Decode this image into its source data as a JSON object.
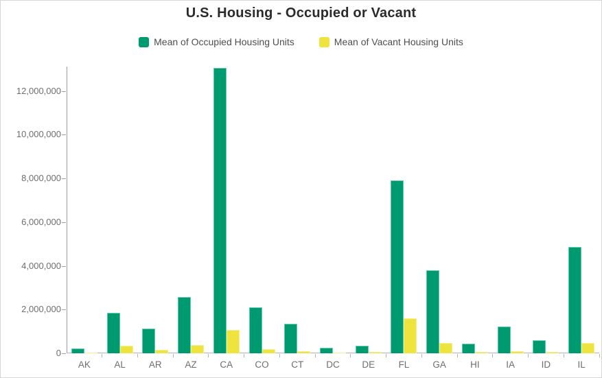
{
  "header": {
    "title": "U.S. Housing - Occupied or Vacant"
  },
  "legend": {
    "items": [
      {
        "label": "Mean of Occupied Housing Units",
        "color": "#009a71"
      },
      {
        "label": "Mean of Vacant Housing Units",
        "color": "#efe33d"
      }
    ]
  },
  "chart_data": {
    "type": "bar",
    "title": "U.S. Housing - Occupied or Vacant",
    "categories": [
      "AK",
      "AL",
      "AR",
      "AZ",
      "CA",
      "CO",
      "CT",
      "DC",
      "DE",
      "FL",
      "GA",
      "HI",
      "IA",
      "ID",
      "IL"
    ],
    "series": [
      {
        "name": "Mean of Occupied Housing Units",
        "color": "#009a71",
        "border_color": "#5fccab",
        "values": [
          220000,
          1850000,
          1130000,
          2580000,
          13060000,
          2090000,
          1360000,
          260000,
          330000,
          7900000,
          3790000,
          430000,
          1230000,
          600000,
          4850000
        ]
      },
      {
        "name": "Mean of Vacant Housing Units",
        "color": "#efe33d",
        "border_color": "#f5ee8e",
        "values": [
          45000,
          350000,
          170000,
          370000,
          1070000,
          180000,
          105000,
          40000,
          70000,
          1590000,
          460000,
          70000,
          105000,
          65000,
          470000
        ]
      }
    ],
    "xlabel": "",
    "ylabel": "",
    "ylim": [
      0,
      13120000
    ],
    "yticks": [
      {
        "value": 0,
        "label": "0"
      },
      {
        "value": 2000000,
        "label": "2,000,000"
      },
      {
        "value": 4000000,
        "label": "4,000,000"
      },
      {
        "value": 6000000,
        "label": "6,000,000"
      },
      {
        "value": 8000000,
        "label": "8,000,000"
      },
      {
        "value": 10000000,
        "label": "10,000,000"
      },
      {
        "value": 12000000,
        "label": "12,000,000"
      }
    ],
    "grid": false,
    "legend_position": "top"
  },
  "style": {
    "axis_color": "#9e9e9e",
    "baseline_color": "#b3b3b3",
    "tick_label_color": "#6e6e6e",
    "title_color": "#2b2b2b",
    "legend_text_color": "#4d4d4d",
    "canvas_border_color": "#d6d6d6",
    "background": "#ffffff"
  }
}
